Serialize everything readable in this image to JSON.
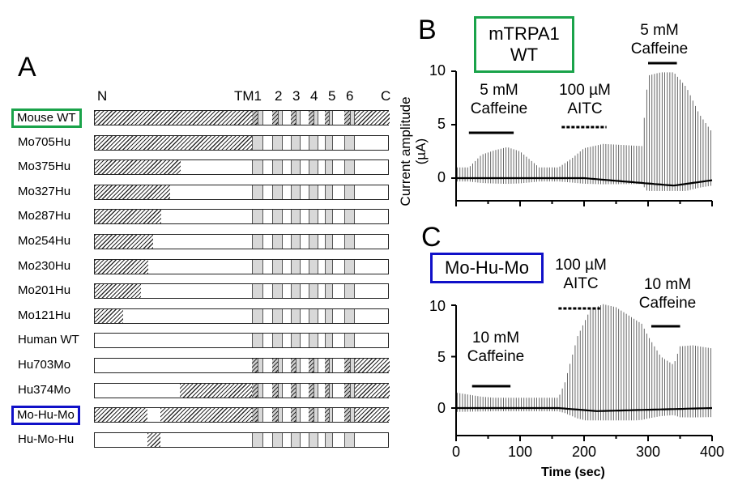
{
  "panel_a": {
    "label": "A",
    "header": {
      "n": "N",
      "tm1": "TM1",
      "tm2": "2",
      "tm3": "3",
      "tm4": "4",
      "tm5": "5",
      "tm6": "6",
      "c": "C"
    },
    "rows": [
      {
        "label": "Mouse WT",
        "boxed": true,
        "box_color": "#1aa34a",
        "mouse": "all"
      },
      {
        "label": "Mo705Hu",
        "boxed": false,
        "mouse": "n_to_tm",
        "tm_mouse": false
      },
      {
        "label": "Mo375Hu",
        "boxed": false,
        "mouse_end": 375
      },
      {
        "label": "Mo327Hu",
        "boxed": false,
        "mouse_end": 327
      },
      {
        "label": "Mo287Hu",
        "boxed": false,
        "mouse_end": 287
      },
      {
        "label": "Mo254Hu",
        "boxed": false,
        "mouse_end": 254
      },
      {
        "label": "Mo230Hu",
        "boxed": false,
        "mouse_end": 230
      },
      {
        "label": "Mo201Hu",
        "boxed": false,
        "mouse_end": 201
      },
      {
        "label": "Mo121Hu",
        "boxed": false,
        "mouse_end": 121
      },
      {
        "label": "Human WT",
        "boxed": false,
        "mouse": "none"
      },
      {
        "label": "Hu703Mo",
        "boxed": false,
        "mouse": "tm_to_c"
      },
      {
        "label": "Hu374Mo",
        "boxed": false,
        "mouse": "from_374"
      },
      {
        "label": "Mo-Hu-Mo",
        "boxed": true,
        "box_color": "#1010c8",
        "mouse": "mo_hu_mo"
      },
      {
        "label": "Hu-Mo-Hu",
        "boxed": false,
        "mouse": "hu_mo_hu"
      }
    ]
  },
  "panel_b": {
    "label": "B",
    "title_line1": "mTRPA1",
    "title_line2": "WT",
    "title_color": "#1aa34a",
    "ylabel_line1": "Current amplitude",
    "ylabel_line2": "(µA)",
    "yticks": [
      "0",
      "5",
      "10"
    ],
    "annotations": [
      {
        "line1": "5 mM",
        "line2": "Caffeine"
      },
      {
        "line1": "100 µM",
        "line2": "AITC"
      },
      {
        "line1": "5 mM",
        "line2": "Caffeine"
      }
    ]
  },
  "panel_c": {
    "label": "C",
    "title": "Mo-Hu-Mo",
    "title_color": "#1010c8",
    "xlabel": "Time (sec)",
    "yticks": [
      "0",
      "5",
      "10"
    ],
    "xticks": [
      "0",
      "100",
      "200",
      "300",
      "400"
    ],
    "annotations": [
      {
        "line1": "10 mM",
        "line2": "Caffeine"
      },
      {
        "line1": "100 µM",
        "line2": "AITC"
      },
      {
        "line1": "10 mM",
        "line2": "Caffeine"
      }
    ]
  },
  "chart_data": [
    {
      "type": "line",
      "panel": "B",
      "title": "mTRPA1 WT",
      "xlabel": "",
      "ylabel": "Current amplitude (µA)",
      "xlim": [
        0,
        400
      ],
      "ylim": [
        -1,
        10
      ],
      "series": [
        {
          "x": [
            0,
            20,
            40,
            60,
            80,
            100,
            130,
            160,
            180,
            200,
            230,
            260,
            290,
            300,
            320,
            340,
            360,
            380,
            400
          ],
          "values": [
            1.0,
            1.0,
            2.2,
            2.6,
            2.9,
            2.5,
            1.0,
            1.0,
            1.8,
            2.8,
            3.2,
            3.1,
            3.0,
            9.6,
            9.9,
            9.9,
            8.5,
            6.0,
            4.3
          ]
        },
        {
          "x": [
            0,
            100,
            200,
            300,
            340,
            400
          ],
          "values": [
            0,
            0,
            0,
            -0.5,
            -0.7,
            -0.2
          ]
        }
      ],
      "annotations": [
        {
          "text": "5 mM Caffeine",
          "x_start": 20,
          "x_end": 90
        },
        {
          "text": "100 µM AITC",
          "x_start": 165,
          "x_end": 235
        },
        {
          "text": "5 mM Caffeine",
          "x_start": 300,
          "x_end": 345
        }
      ]
    },
    {
      "type": "line",
      "panel": "C",
      "title": "Mo-Hu-Mo",
      "xlabel": "Time (sec)",
      "ylabel": "",
      "xlim": [
        0,
        400
      ],
      "ylim": [
        -1,
        10
      ],
      "series": [
        {
          "x": [
            0,
            20,
            40,
            60,
            80,
            100,
            130,
            160,
            170,
            190,
            210,
            230,
            250,
            270,
            290,
            300,
            320,
            340,
            350,
            370,
            400
          ],
          "values": [
            1.5,
            1.3,
            1.1,
            1.0,
            1.0,
            1.0,
            1.0,
            1.0,
            2.5,
            7.0,
            9.6,
            10.1,
            9.8,
            9.0,
            8.2,
            7.0,
            5.0,
            4.2,
            6.0,
            6.1,
            5.8
          ]
        },
        {
          "x": [
            0,
            160,
            220,
            280,
            400
          ],
          "values": [
            0,
            0,
            -0.3,
            -0.2,
            0
          ]
        }
      ],
      "annotations": [
        {
          "text": "10 mM Caffeine",
          "x_start": 25,
          "x_end": 85
        },
        {
          "text": "100 µM AITC",
          "x_start": 160,
          "x_end": 225
        },
        {
          "text": "10 mM Caffeine",
          "x_start": 305,
          "x_end": 350
        }
      ]
    }
  ]
}
